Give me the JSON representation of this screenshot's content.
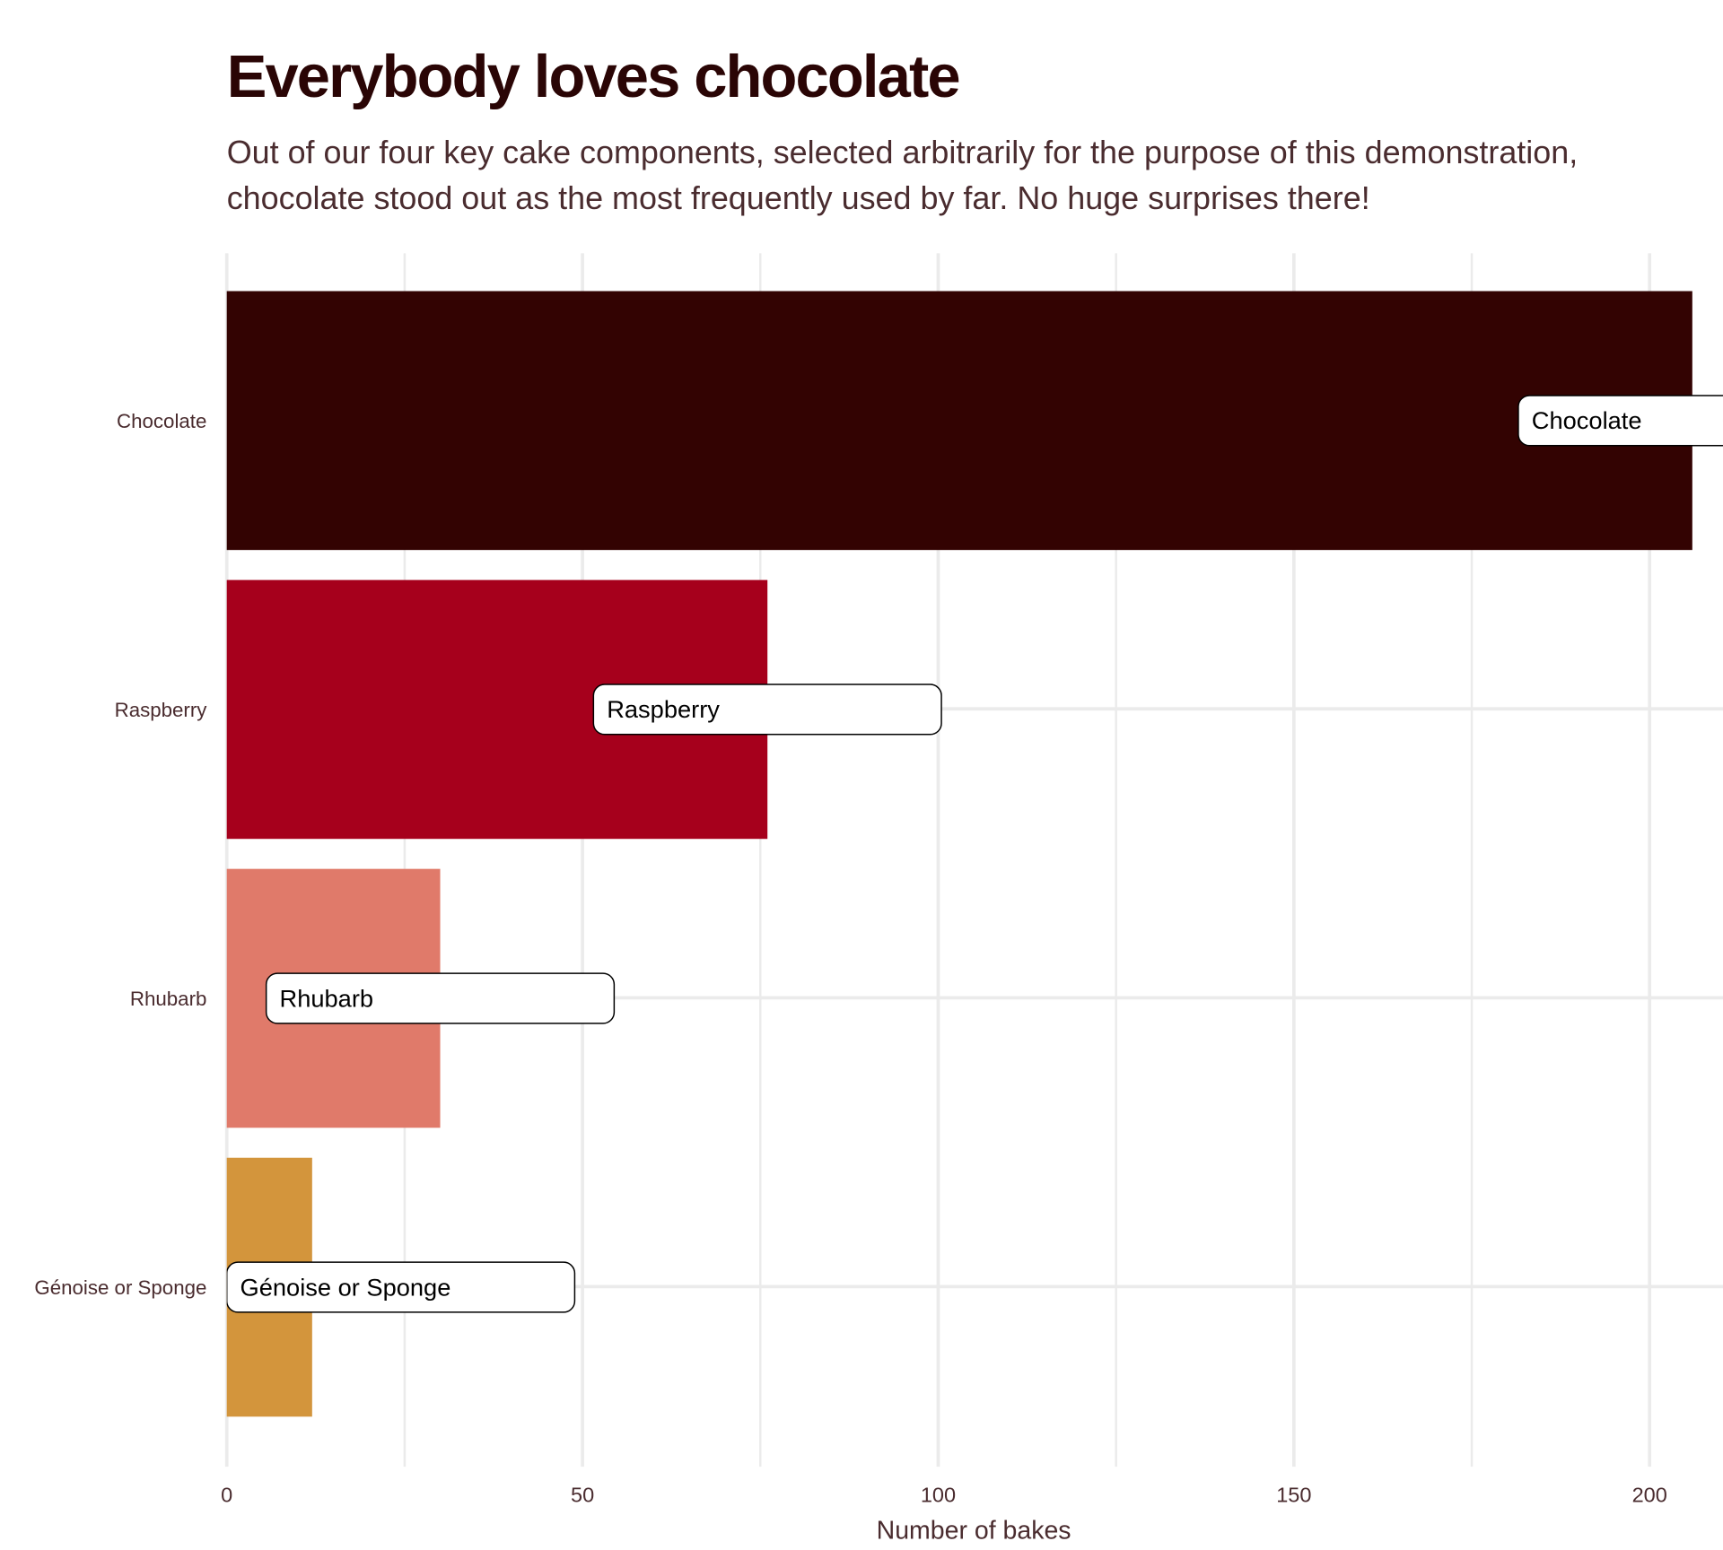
{
  "chart_data": {
    "type": "bar",
    "orientation": "horizontal",
    "title": "Everybody loves chocolate",
    "subtitle": "Out of our four key cake components, selected arbitrarily for the purpose of this demonstration, chocolate stood out as the most frequently used by far. No huge surprises there!",
    "categories": [
      "Chocolate",
      "Raspberry",
      "Rhubarb",
      "Génoise or Sponge"
    ],
    "values": [
      206,
      76,
      30,
      12
    ],
    "colors": [
      "#330302",
      "#a6001c",
      "#e07a6a",
      "#d3953c"
    ],
    "xlabel": "Number of bakes",
    "ylabel": "",
    "xlim": [
      0,
      210
    ],
    "xticks": [
      0,
      50,
      100,
      150,
      200
    ],
    "grid": true,
    "legend": "none",
    "bar_labels": [
      "Chocolate",
      "Raspberry",
      "Rhubarb",
      "Génoise or Sponge"
    ]
  }
}
